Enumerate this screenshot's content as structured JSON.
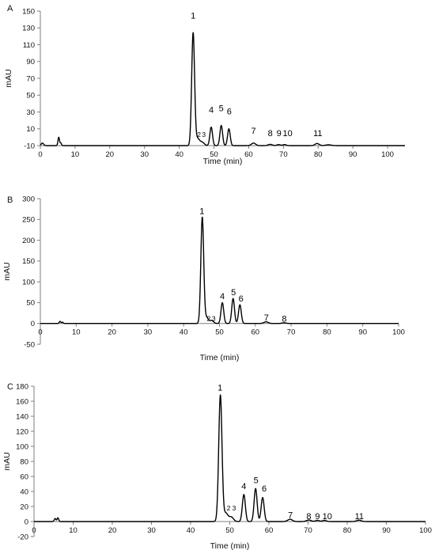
{
  "chart_data": [
    {
      "type": "line",
      "panel": "A",
      "xlabel": "Time (min)",
      "ylabel": "mAU",
      "xlim": [
        0,
        105
      ],
      "ylim": [
        -10,
        150
      ],
      "xticks": [
        0,
        10,
        20,
        30,
        40,
        50,
        60,
        70,
        80,
        90,
        100
      ],
      "yticks": [
        -10,
        10,
        30,
        50,
        70,
        90,
        110,
        130,
        150
      ],
      "baseline": -10,
      "grid": false,
      "peaks": [
        {
          "t": 0.6,
          "h": 3,
          "w": 0.35
        },
        {
          "t": 5.3,
          "h": 10,
          "w": 0.22
        },
        {
          "t": 5.9,
          "h": 3,
          "w": 0.2
        },
        {
          "t": 44.0,
          "h": 134,
          "w": 0.42
        },
        {
          "t": 45.3,
          "h": 8,
          "w": 0.55
        },
        {
          "t": 46.6,
          "h": 4,
          "w": 0.6
        },
        {
          "t": 49.2,
          "h": 22,
          "w": 0.38
        },
        {
          "t": 52.1,
          "h": 24,
          "w": 0.38
        },
        {
          "t": 54.3,
          "h": 20,
          "w": 0.38
        },
        {
          "t": 61.4,
          "h": 3,
          "w": 0.6
        },
        {
          "t": 66.2,
          "h": 1.5,
          "w": 0.6
        },
        {
          "t": 68.6,
          "h": 1.2,
          "w": 0.5
        },
        {
          "t": 70.3,
          "h": 1.2,
          "w": 0.5
        },
        {
          "t": 79.7,
          "h": 2.5,
          "w": 0.6
        },
        {
          "t": 83.0,
          "h": 1,
          "w": 0.8
        }
      ],
      "peak_labels": [
        {
          "text": "1",
          "x": 44.0,
          "y": 141
        },
        {
          "text": "2",
          "x": 45.7,
          "y": 0.5,
          "small": true
        },
        {
          "text": "3",
          "x": 47.1,
          "y": 0.5,
          "small": true
        },
        {
          "text": "4",
          "x": 49.2,
          "y": 29
        },
        {
          "text": "5",
          "x": 52.1,
          "y": 31
        },
        {
          "text": "6",
          "x": 54.4,
          "y": 27
        },
        {
          "text": "7",
          "x": 61.4,
          "y": 4
        },
        {
          "text": "8",
          "x": 66.2,
          "y": 1.5
        },
        {
          "text": "9",
          "x": 68.7,
          "y": 1.5
        },
        {
          "text": "10",
          "x": 71.2,
          "y": 1.5
        },
        {
          "text": "11",
          "x": 79.9,
          "y": 1.5
        }
      ]
    },
    {
      "type": "line",
      "panel": "B",
      "xlabel": "Time (min)",
      "ylabel": "mAU",
      "xlim": [
        0,
        100
      ],
      "ylim": [
        -50,
        300
      ],
      "xticks": [
        0,
        10,
        20,
        30,
        40,
        50,
        60,
        70,
        80,
        90,
        100
      ],
      "yticks": [
        -50,
        0,
        50,
        100,
        150,
        200,
        250,
        300
      ],
      "baseline": 0,
      "grid": false,
      "peaks": [
        {
          "t": 5.5,
          "h": 5,
          "w": 0.22
        },
        {
          "t": 6.2,
          "h": 3,
          "w": 0.2
        },
        {
          "t": 45.2,
          "h": 255,
          "w": 0.4
        },
        {
          "t": 46.4,
          "h": 14,
          "w": 0.5
        },
        {
          "t": 47.8,
          "h": 7,
          "w": 0.55
        },
        {
          "t": 50.8,
          "h": 50,
          "w": 0.38
        },
        {
          "t": 53.8,
          "h": 60,
          "w": 0.38
        },
        {
          "t": 55.7,
          "h": 45,
          "w": 0.38
        },
        {
          "t": 63.0,
          "h": 4,
          "w": 0.6
        },
        {
          "t": 68.0,
          "h": 1.5,
          "w": 0.6
        }
      ],
      "peak_labels": [
        {
          "text": "1",
          "x": 45.1,
          "y": 263
        },
        {
          "text": "2",
          "x": 47.0,
          "y": 6,
          "small": true
        },
        {
          "text": "3",
          "x": 48.4,
          "y": 6,
          "small": true
        },
        {
          "text": "4",
          "x": 50.8,
          "y": 58
        },
        {
          "text": "5",
          "x": 53.9,
          "y": 68
        },
        {
          "text": "6",
          "x": 56.0,
          "y": 53
        },
        {
          "text": "7",
          "x": 63.1,
          "y": 7
        },
        {
          "text": "8",
          "x": 68.1,
          "y": 4
        }
      ]
    },
    {
      "type": "line",
      "panel": "C",
      "xlabel": "Time (min)",
      "ylabel": "mAU",
      "xlim": [
        0,
        100
      ],
      "ylim": [
        -20,
        180
      ],
      "xticks": [
        0,
        10,
        20,
        30,
        40,
        50,
        60,
        70,
        80,
        90,
        100
      ],
      "yticks": [
        -20,
        0,
        20,
        40,
        60,
        80,
        100,
        120,
        140,
        160,
        180
      ],
      "baseline": 0,
      "grid": false,
      "peaks": [
        {
          "t": 5.4,
          "h": 4,
          "w": 0.22
        },
        {
          "t": 6.1,
          "h": 5,
          "w": 0.2
        },
        {
          "t": 47.6,
          "h": 168,
          "w": 0.42
        },
        {
          "t": 49.0,
          "h": 11,
          "w": 0.55
        },
        {
          "t": 50.4,
          "h": 6,
          "w": 0.55
        },
        {
          "t": 53.6,
          "h": 36,
          "w": 0.38
        },
        {
          "t": 56.6,
          "h": 44,
          "w": 0.38
        },
        {
          "t": 58.4,
          "h": 32,
          "w": 0.38
        },
        {
          "t": 65.4,
          "h": 3,
          "w": 0.6
        },
        {
          "t": 70.2,
          "h": 2,
          "w": 0.6
        },
        {
          "t": 72.4,
          "h": 1.5,
          "w": 0.5
        },
        {
          "t": 74.2,
          "h": 1.5,
          "w": 0.5
        },
        {
          "t": 83.0,
          "h": 1.8,
          "w": 0.6
        }
      ],
      "peak_labels": [
        {
          "text": "1",
          "x": 47.5,
          "y": 174
        },
        {
          "text": "2",
          "x": 49.7,
          "y": 15,
          "small": true
        },
        {
          "text": "3",
          "x": 51.1,
          "y": 15,
          "small": true
        },
        {
          "text": "4",
          "x": 53.6,
          "y": 43
        },
        {
          "text": "5",
          "x": 56.7,
          "y": 51
        },
        {
          "text": "6",
          "x": 58.8,
          "y": 40
        },
        {
          "text": "7",
          "x": 65.5,
          "y": 5
        },
        {
          "text": "8",
          "x": 70.2,
          "y": 3
        },
        {
          "text": "9",
          "x": 72.4,
          "y": 3
        },
        {
          "text": "10",
          "x": 74.9,
          "y": 3
        },
        {
          "text": "11",
          "x": 83.1,
          "y": 3
        }
      ]
    }
  ]
}
